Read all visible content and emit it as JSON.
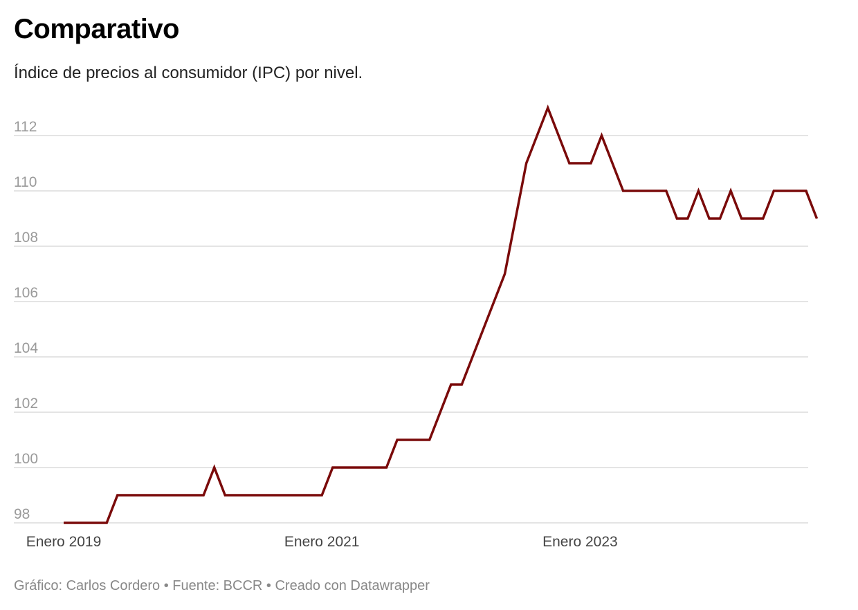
{
  "chart_data": {
    "type": "line",
    "title": "Comparativo",
    "subtitle": "Índice de precios al consumidor (IPC) por nivel.",
    "footer": "Gráfico: Carlos Cordero • Fuente: BCCR • Creado con Datawrapper",
    "xlabel": "",
    "ylabel": "",
    "ylim": [
      98,
      113
    ],
    "y_ticks": [
      98,
      100,
      102,
      104,
      106,
      108,
      110,
      112
    ],
    "x_tick_labels": [
      {
        "label": "Enero 2019",
        "index": 0
      },
      {
        "label": "Enero 2021",
        "index": 24
      },
      {
        "label": "Enero 2023",
        "index": 48
      }
    ],
    "x_start": "Enero 2019",
    "grid": true,
    "line_color": "#7a0a0a",
    "series": [
      {
        "name": "IPC",
        "values": [
          98,
          98,
          98,
          98,
          98,
          99,
          99,
          99,
          99,
          99,
          99,
          99,
          99,
          99,
          100,
          99,
          99,
          99,
          99,
          99,
          99,
          99,
          99,
          99,
          99,
          100,
          100,
          100,
          100,
          100,
          100,
          101,
          101,
          101,
          101,
          102,
          103,
          103,
          104,
          105,
          106,
          107,
          109,
          111,
          112,
          113,
          112,
          111,
          111,
          111,
          112,
          111,
          110,
          110,
          110,
          110,
          110,
          109,
          109,
          110,
          109,
          109,
          110,
          109,
          109,
          109,
          110,
          110,
          110,
          110,
          109
        ]
      }
    ]
  }
}
